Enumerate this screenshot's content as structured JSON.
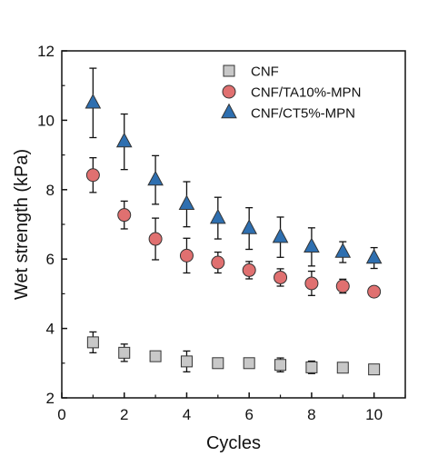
{
  "chart_data": {
    "type": "scatter",
    "xlabel": "Cycles",
    "ylabel": "Wet strength (kPa)",
    "xlim": [
      0,
      11
    ],
    "ylim": [
      2,
      12
    ],
    "xticks": [
      0,
      2,
      4,
      6,
      8,
      10
    ],
    "yticks": [
      2,
      4,
      6,
      8,
      10,
      12
    ],
    "grid": false,
    "legend_position": "top-right",
    "series": [
      {
        "name": "CNF",
        "marker": "square",
        "color": "#c8c8c8",
        "x": [
          1,
          2,
          3,
          4,
          5,
          6,
          7,
          8,
          9,
          10
        ],
        "y": [
          3.6,
          3.3,
          3.2,
          3.05,
          3.0,
          3.0,
          2.95,
          2.88,
          2.87,
          2.82
        ],
        "err": [
          0.3,
          0.25,
          0.1,
          0.3,
          0.1,
          0.1,
          0.2,
          0.18,
          0.1,
          0.12
        ]
      },
      {
        "name": "CNF/TA10%-MPN",
        "marker": "circle",
        "color": "#e07070",
        "x": [
          1,
          2,
          3,
          4,
          5,
          6,
          7,
          8,
          9,
          10
        ],
        "y": [
          8.42,
          7.27,
          6.58,
          6.1,
          5.9,
          5.68,
          5.47,
          5.3,
          5.22,
          5.06
        ],
        "err": [
          0.5,
          0.4,
          0.6,
          0.5,
          0.3,
          0.25,
          0.25,
          0.35,
          0.2,
          0.12
        ]
      },
      {
        "name": "CNF/CT5%-MPN",
        "marker": "triangle",
        "color": "#2e6fb0",
        "x": [
          1,
          2,
          3,
          4,
          5,
          6,
          7,
          8,
          9,
          10
        ],
        "y": [
          10.5,
          9.38,
          8.28,
          7.58,
          7.18,
          6.88,
          6.63,
          6.35,
          6.2,
          6.03
        ],
        "err": [
          1.0,
          0.8,
          0.7,
          0.65,
          0.6,
          0.6,
          0.58,
          0.55,
          0.3,
          0.3
        ]
      }
    ]
  }
}
